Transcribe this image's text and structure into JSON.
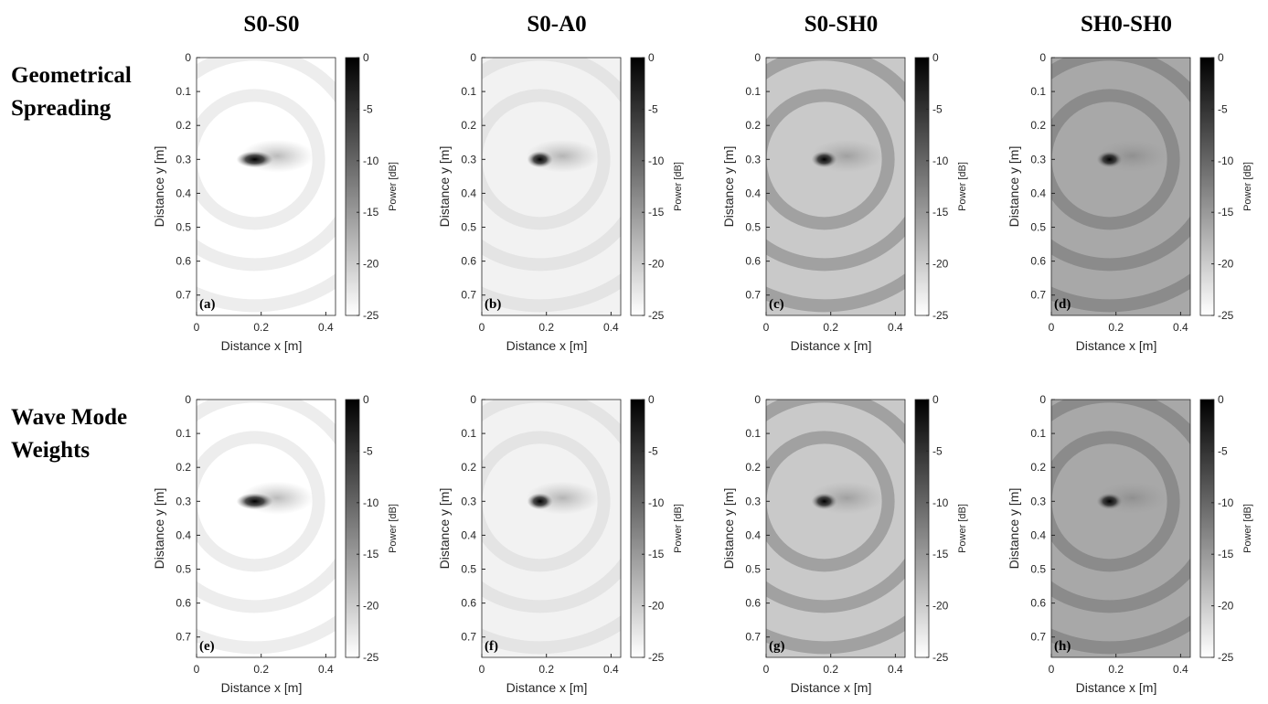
{
  "column_titles": [
    "S0-S0",
    "S0-A0",
    "S0-SH0",
    "SH0-SH0"
  ],
  "row_titles": [
    [
      "Geometrical",
      "Spreading"
    ],
    [
      "Wave Mode",
      "Weights"
    ]
  ],
  "chart_data": [
    {
      "type": "heatmap",
      "panel_label": "(a)",
      "xlabel": "Distance x [m]",
      "ylabel": "Distance y [m]",
      "xlim": [
        0,
        0.43
      ],
      "xticks": [
        0,
        0.2,
        0.4
      ],
      "ylim": [
        0,
        0.76
      ],
      "yticks": [
        0,
        0.1,
        0.2,
        0.3,
        0.4,
        0.5,
        0.6,
        0.7
      ],
      "clim": [
        -25,
        0
      ],
      "cticks": [
        0,
        -5,
        -10,
        -15,
        -20,
        -25
      ],
      "clabel": "Power [dB]",
      "colormap": [
        "#ffffff",
        "#000000"
      ]
    },
    {
      "type": "heatmap",
      "panel_label": "(b)",
      "xlabel": "Distance x [m]",
      "ylabel": "Distance y [m]",
      "xlim": [
        0,
        0.43
      ],
      "xticks": [
        0,
        0.2,
        0.4
      ],
      "ylim": [
        0,
        0.76
      ],
      "yticks": [
        0,
        0.1,
        0.2,
        0.3,
        0.4,
        0.5,
        0.6,
        0.7
      ],
      "clim": [
        -25,
        0
      ],
      "cticks": [
        0,
        -5,
        -10,
        -15,
        -20,
        -25
      ],
      "clabel": "Power [dB]",
      "colormap": [
        "#ffffff",
        "#000000"
      ]
    },
    {
      "type": "heatmap",
      "panel_label": "(c)",
      "xlabel": "Distance x [m]",
      "ylabel": "Distance y [m]",
      "xlim": [
        0,
        0.43
      ],
      "xticks": [
        0,
        0.2,
        0.4
      ],
      "ylim": [
        0,
        0.76
      ],
      "yticks": [
        0,
        0.1,
        0.2,
        0.3,
        0.4,
        0.5,
        0.6,
        0.7
      ],
      "clim": [
        -25,
        0
      ],
      "cticks": [
        0,
        -5,
        -10,
        -15,
        -20,
        -25
      ],
      "clabel": "Power [dB]",
      "colormap": [
        "#ffffff",
        "#000000"
      ]
    },
    {
      "type": "heatmap",
      "panel_label": "(d)",
      "xlabel": "Distance x [m]",
      "ylabel": "Distance y [m]",
      "xlim": [
        0,
        0.43
      ],
      "xticks": [
        0,
        0.2,
        0.4
      ],
      "ylim": [
        0,
        0.76
      ],
      "yticks": [
        0,
        0.1,
        0.2,
        0.3,
        0.4,
        0.5,
        0.6,
        0.7
      ],
      "clim": [
        -25,
        0
      ],
      "cticks": [
        0,
        -5,
        -10,
        -15,
        -20,
        -25
      ],
      "clabel": "Power [dB]",
      "colormap": [
        "#ffffff",
        "#000000"
      ]
    },
    {
      "type": "heatmap",
      "panel_label": "(e)",
      "xlabel": "Distance x [m]",
      "ylabel": "Distance y [m]",
      "xlim": [
        0,
        0.43
      ],
      "xticks": [
        0,
        0.2,
        0.4
      ],
      "ylim": [
        0,
        0.76
      ],
      "yticks": [
        0,
        0.1,
        0.2,
        0.3,
        0.4,
        0.5,
        0.6,
        0.7
      ],
      "clim": [
        -25,
        0
      ],
      "cticks": [
        0,
        -5,
        -10,
        -15,
        -20,
        -25
      ],
      "clabel": "Power [dB]",
      "colormap": [
        "#ffffff",
        "#000000"
      ]
    },
    {
      "type": "heatmap",
      "panel_label": "(f)",
      "xlabel": "Distance x [m]",
      "ylabel": "Distance y [m]",
      "xlim": [
        0,
        0.43
      ],
      "xticks": [
        0,
        0.2,
        0.4
      ],
      "ylim": [
        0,
        0.76
      ],
      "yticks": [
        0,
        0.1,
        0.2,
        0.3,
        0.4,
        0.5,
        0.6,
        0.7
      ],
      "clim": [
        -25,
        0
      ],
      "cticks": [
        0,
        -5,
        -10,
        -15,
        -20,
        -25
      ],
      "clabel": "Power [dB]",
      "colormap": [
        "#ffffff",
        "#000000"
      ]
    },
    {
      "type": "heatmap",
      "panel_label": "(g)",
      "xlabel": "Distance x [m]",
      "ylabel": "Distance y [m]",
      "xlim": [
        0,
        0.43
      ],
      "xticks": [
        0,
        0.2,
        0.4
      ],
      "ylim": [
        0,
        0.76
      ],
      "yticks": [
        0,
        0.1,
        0.2,
        0.3,
        0.4,
        0.5,
        0.6,
        0.7
      ],
      "clim": [
        -25,
        0
      ],
      "cticks": [
        0,
        -5,
        -10,
        -15,
        -20,
        -25
      ],
      "clabel": "Power [dB]",
      "colormap": [
        "#ffffff",
        "#000000"
      ]
    },
    {
      "type": "heatmap",
      "panel_label": "(h)",
      "xlabel": "Distance x [m]",
      "ylabel": "Distance y [m]",
      "xlim": [
        0,
        0.43
      ],
      "xticks": [
        0,
        0.2,
        0.4
      ],
      "ylim": [
        0,
        0.76
      ],
      "yticks": [
        0,
        0.1,
        0.2,
        0.3,
        0.4,
        0.5,
        0.6,
        0.7
      ],
      "clim": [
        -25,
        0
      ],
      "cticks": [
        0,
        -5,
        -10,
        -15,
        -20,
        -25
      ],
      "clabel": "Power [dB]",
      "colormap": [
        "#ffffff",
        "#000000"
      ]
    }
  ]
}
